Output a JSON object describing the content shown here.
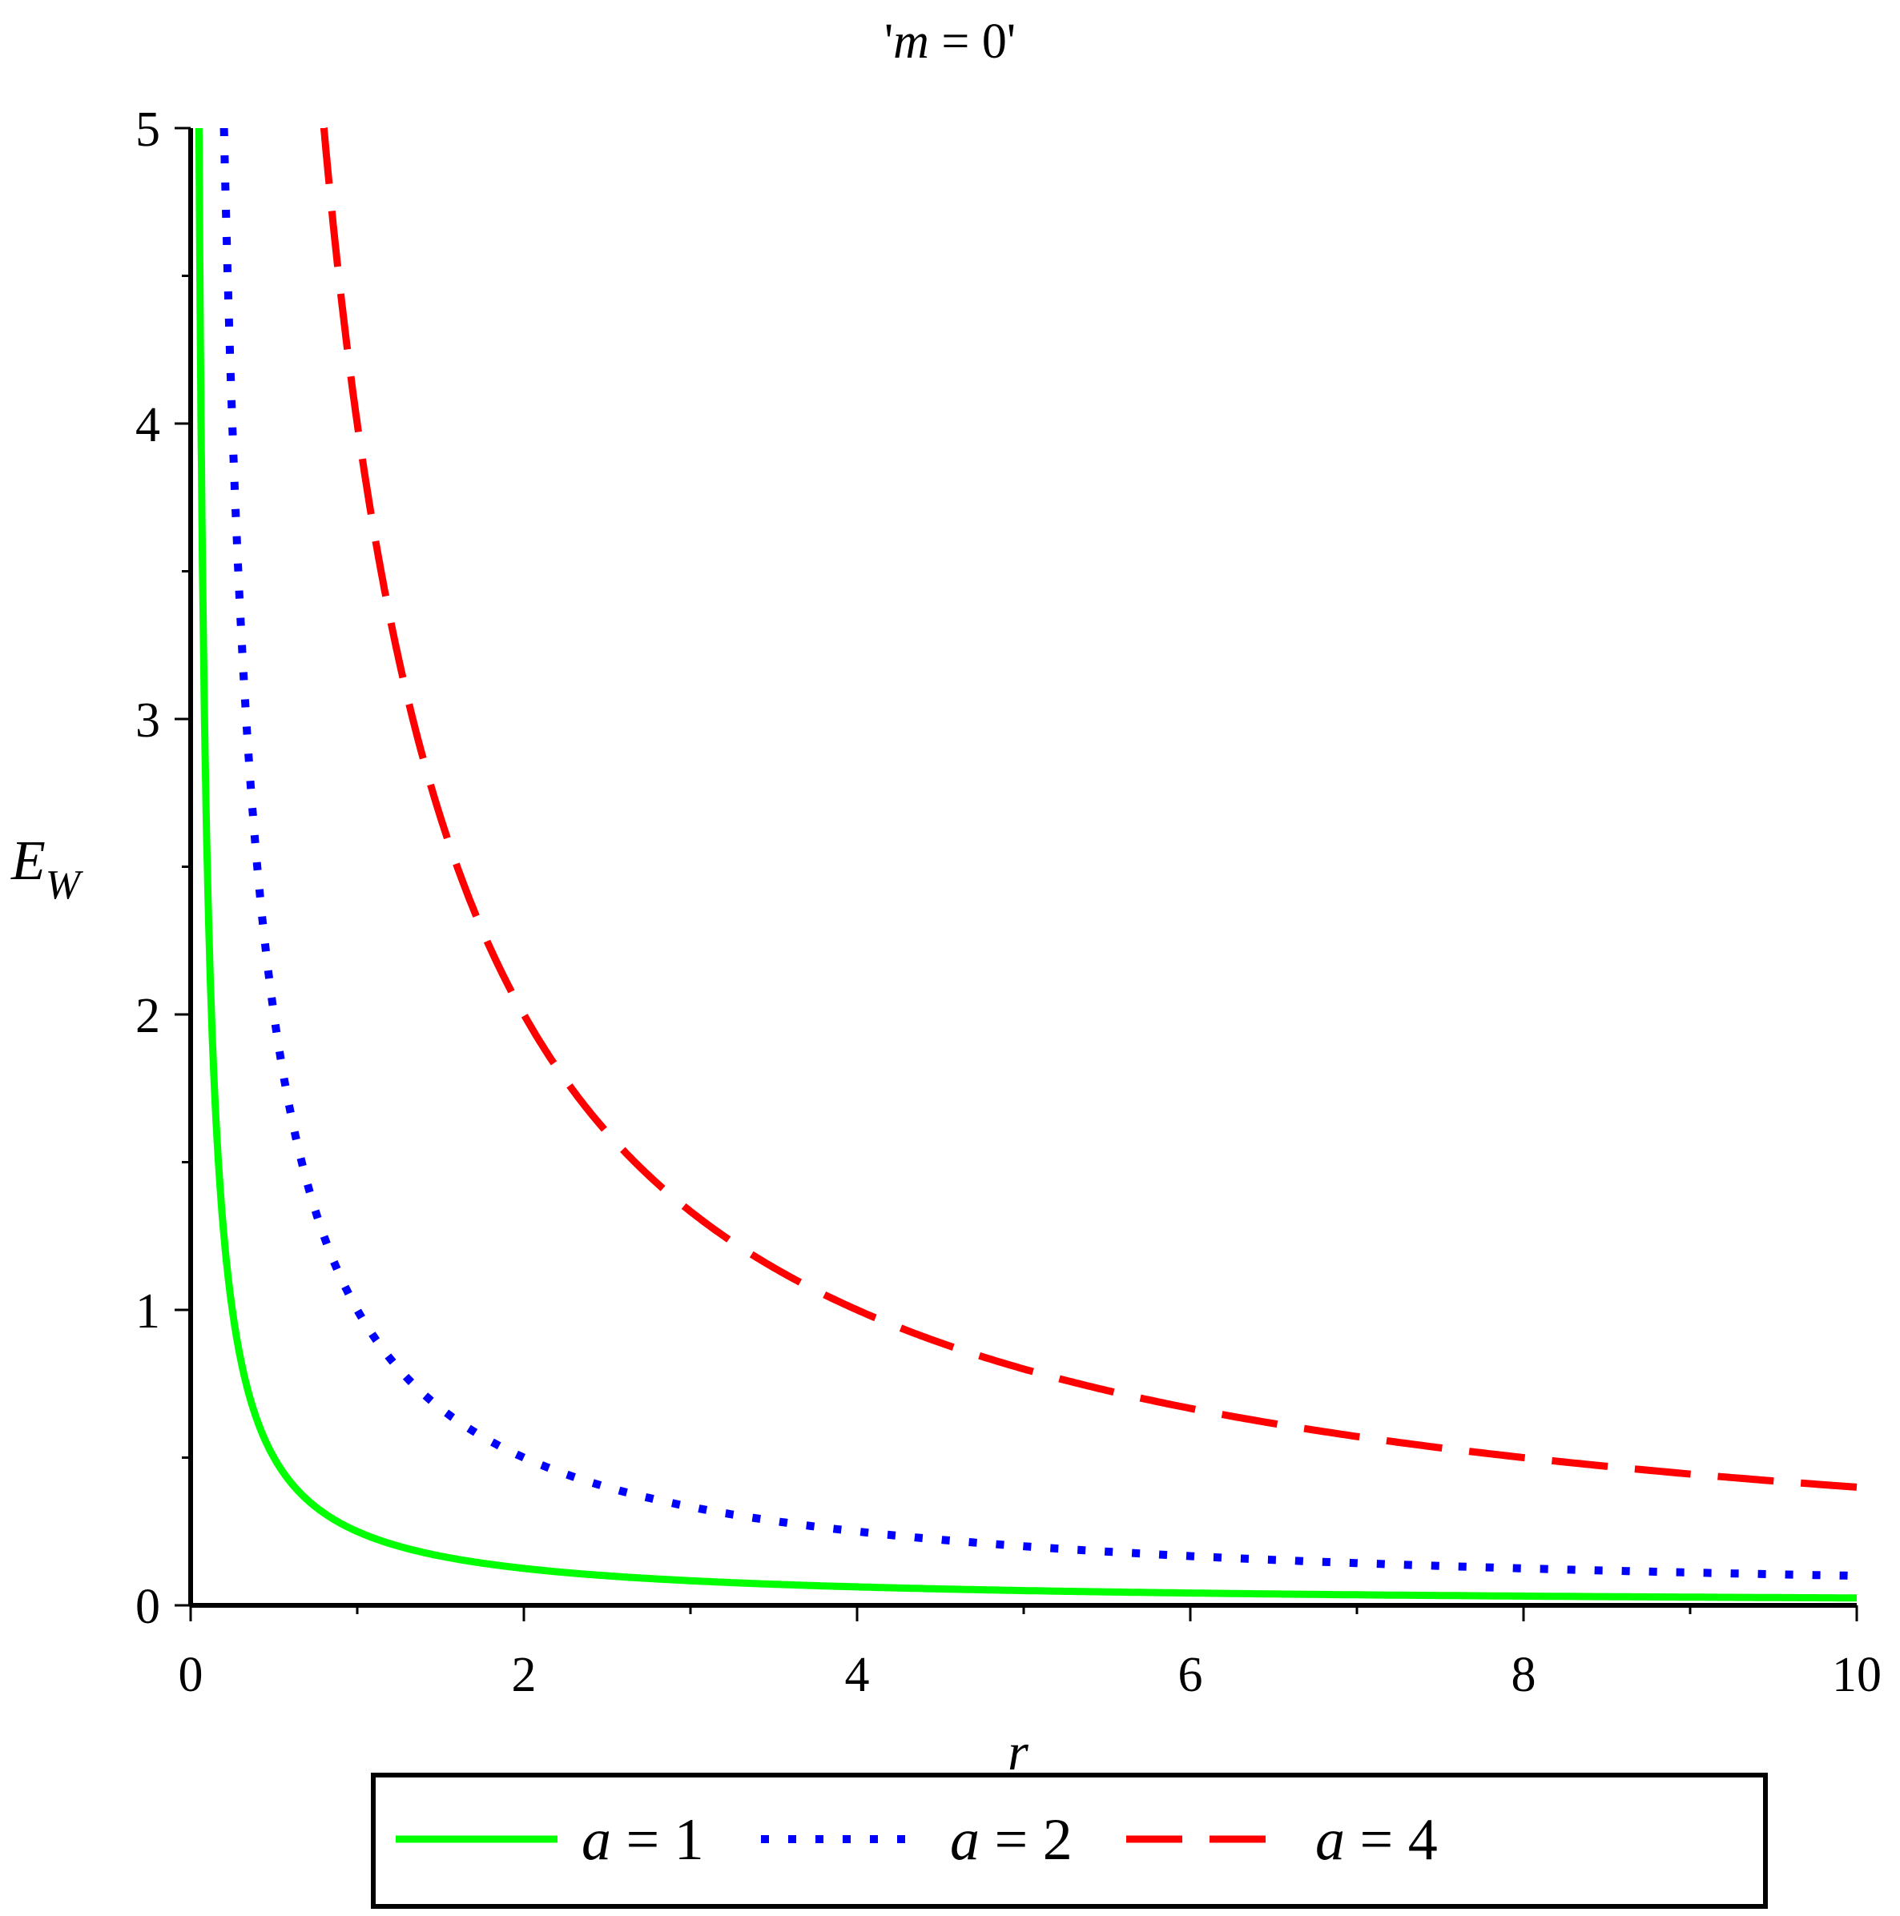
{
  "chart_data": {
    "type": "line",
    "title": {
      "prefix": "'",
      "var": "m",
      "rest": " = 0'"
    },
    "xlabel": "r",
    "ylabel": {
      "main": "E",
      "sub": "W"
    },
    "xlim": [
      0,
      10
    ],
    "ylim": [
      0,
      5
    ],
    "x_ticks": [
      "0",
      "2",
      "4",
      "6",
      "8",
      "10"
    ],
    "y_ticks": [
      "0",
      "1",
      "2",
      "3",
      "4",
      "5"
    ],
    "x_tick_values": [
      0,
      2,
      4,
      6,
      8,
      10
    ],
    "y_tick_values": [
      0,
      1,
      2,
      3,
      4,
      5
    ],
    "x_minor_step": 1,
    "y_minor_step": 0.5,
    "formula": "E_W = a^2 / (4 r)",
    "series": [
      {
        "name": "a = 1",
        "legend_var": "a",
        "legend_rest": " = 1",
        "a": 1,
        "color": "#00ff00",
        "style": "solid",
        "x": [
          0.05,
          0.1,
          0.2,
          0.3,
          0.5,
          0.75,
          1,
          1.5,
          2,
          3,
          4,
          5,
          6,
          7,
          8,
          9,
          10
        ],
        "y": [
          5.0,
          2.5,
          1.25,
          0.833,
          0.5,
          0.333,
          0.25,
          0.167,
          0.125,
          0.083,
          0.0625,
          0.05,
          0.042,
          0.036,
          0.031,
          0.028,
          0.025
        ]
      },
      {
        "name": "a = 2",
        "legend_var": "a",
        "legend_rest": " = 2",
        "a": 2,
        "color": "#0000ff",
        "style": "dotted",
        "x": [
          0.2,
          0.3,
          0.5,
          0.75,
          1,
          1.5,
          2,
          3,
          4,
          5,
          6,
          7,
          8,
          9,
          10
        ],
        "y": [
          5.0,
          3.333,
          2.0,
          1.333,
          1.0,
          0.667,
          0.5,
          0.333,
          0.25,
          0.2,
          0.167,
          0.143,
          0.125,
          0.111,
          0.1
        ]
      },
      {
        "name": "a = 4",
        "legend_var": "a",
        "legend_rest": " = 4",
        "a": 4,
        "color": "#ff0000",
        "style": "dashed",
        "x": [
          0.8,
          1,
          1.5,
          2,
          3,
          4,
          5,
          6,
          7,
          8,
          9,
          10
        ],
        "y": [
          5.0,
          4.0,
          2.667,
          2.0,
          1.333,
          1.0,
          0.8,
          0.667,
          0.571,
          0.5,
          0.444,
          0.4
        ]
      }
    ],
    "legend_position": "bottom"
  }
}
